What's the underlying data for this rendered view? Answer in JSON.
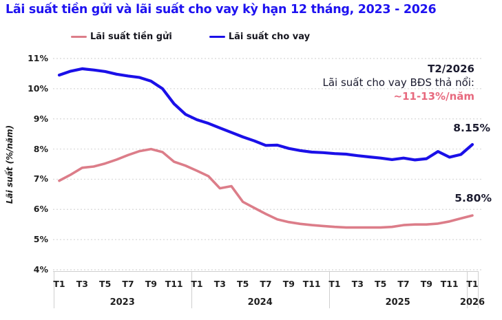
{
  "title": "Lãi suất tiền gửi và lãi suất cho vay kỳ hạn 12 tháng, 2023 - 2026",
  "legend": {
    "deposit": {
      "label": "Lãi suất tiền gửi",
      "color": "#dc7d89"
    },
    "lending": {
      "label": "Lãi suất cho vay",
      "color": "#1b10e8"
    }
  },
  "annotation": {
    "period": "T2/2026",
    "text": "Lãi suất cho vay BĐS thả nổi:",
    "rate": "~11-13%/năm",
    "rate_color": "#e7697e"
  },
  "end_labels": {
    "lending": "8.15%",
    "deposit": "5.80%"
  },
  "chart_data": {
    "type": "line",
    "title": "Lãi suất tiền gửi và lãi suất cho vay kỳ hạn 12 tháng, 2023 - 2026",
    "ylabel": "Lãi suất (%/năm)",
    "ylim": [
      4,
      11
    ],
    "yticks": [
      {
        "label": "11%",
        "value": 11
      },
      {
        "label": "10%",
        "value": 10
      },
      {
        "label": "9%",
        "value": 9
      },
      {
        "label": "8%",
        "value": 8
      },
      {
        "label": "7%",
        "value": 7
      },
      {
        "label": "6%",
        "value": 6
      },
      {
        "label": "5%",
        "value": 5
      },
      {
        "label": "4%",
        "value": 4
      }
    ],
    "grid": "horizontal-dashed",
    "legend_position": "top",
    "x_unit": "month",
    "years": [
      {
        "label": "2023",
        "n_months": 12,
        "tick_labels": [
          "T1",
          "T3",
          "T5",
          "T7",
          "T9",
          "T11"
        ]
      },
      {
        "label": "2024",
        "n_months": 12,
        "tick_labels": [
          "T1",
          "T3",
          "T5",
          "T7",
          "T9",
          "T11"
        ]
      },
      {
        "label": "2025",
        "n_months": 12,
        "tick_labels": [
          "T1",
          "T3",
          "T5",
          "T7",
          "T9",
          "T11"
        ]
      },
      {
        "label": "2026",
        "n_months": 1,
        "tick_labels": [
          "T1"
        ]
      }
    ],
    "series": [
      {
        "name": "Lãi suất tiền gửi",
        "color": "#dc7d89",
        "stroke_width": 3.6,
        "values": [
          6.95,
          7.15,
          7.38,
          7.42,
          7.52,
          7.65,
          7.8,
          7.93,
          8.0,
          7.9,
          7.58,
          7.45,
          7.28,
          7.1,
          6.7,
          6.77,
          6.25,
          6.05,
          5.85,
          5.67,
          5.58,
          5.52,
          5.48,
          5.45,
          5.42,
          5.4,
          5.4,
          5.4,
          5.4,
          5.42,
          5.48,
          5.5,
          5.5,
          5.53,
          5.6,
          5.7,
          5.8
        ]
      },
      {
        "name": "Lãi suất cho vay",
        "color": "#1b10e8",
        "stroke_width": 4.2,
        "values": [
          10.45,
          10.58,
          10.66,
          10.62,
          10.57,
          10.48,
          10.42,
          10.37,
          10.25,
          10.0,
          9.5,
          9.15,
          8.97,
          8.85,
          8.7,
          8.55,
          8.4,
          8.27,
          8.12,
          8.13,
          8.02,
          7.95,
          7.9,
          7.88,
          7.85,
          7.83,
          7.78,
          7.74,
          7.7,
          7.65,
          7.7,
          7.64,
          7.68,
          7.92,
          7.73,
          7.82,
          8.15
        ]
      }
    ]
  }
}
